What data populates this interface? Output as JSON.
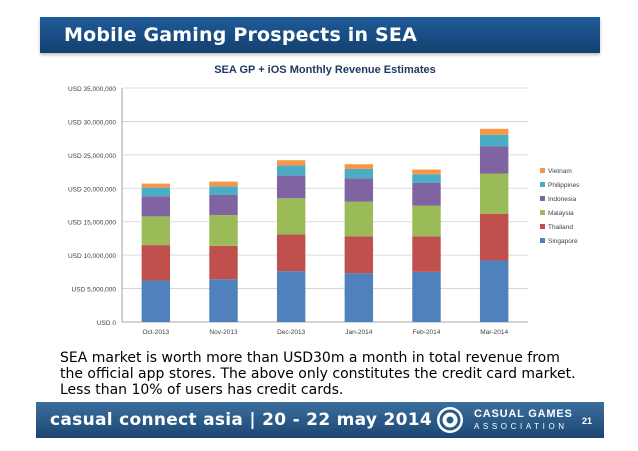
{
  "slide": {
    "title": "Mobile Gaming Prospects in SEA",
    "body": "SEA market is worth more than USD30m a month in total revenue from the official app stores. The above only constitutes the credit card market. Less than 10% of users has credit cards.",
    "page_number": "21"
  },
  "footer": {
    "event_text": "casual connect asia | 20 - 22 may 2014",
    "org_line1": "CASUAL GAMES",
    "org_line2": "ASSOCIATION",
    "logo_icon": "casual-games-association-logo-icon"
  },
  "colors": {
    "title_bar": "#1f5b9a",
    "footer_bar": "#2a5a88"
  },
  "chart_data": {
    "type": "bar",
    "stacked": true,
    "title": "SEA GP + iOS Monthly Revenue Estimates",
    "categories": [
      "Oct-2013",
      "Nov-2013",
      "Dec-2013",
      "Jan-2014",
      "Feb-2014",
      "Mar-2014"
    ],
    "ylim": [
      0,
      35000000
    ],
    "yticks": [
      0,
      5000000,
      10000000,
      15000000,
      20000000,
      25000000,
      30000000,
      35000000
    ],
    "ytick_labels": [
      "USD 0",
      "USD 5,000,000",
      "USD 10,000,000",
      "USD 15,000,000",
      "USD 20,000,000",
      "USD 25,000,000",
      "USD 30,000,000",
      "USD 35,000,000"
    ],
    "gridlines": true,
    "legend_position": "right",
    "series": [
      {
        "name": "Singapore",
        "color": "#4f81bd",
        "values": [
          6200000,
          6400000,
          7600000,
          7300000,
          7500000,
          9200000
        ]
      },
      {
        "name": "Thailand",
        "color": "#c0504d",
        "values": [
          5300000,
          5000000,
          5500000,
          5500000,
          5300000,
          7000000
        ]
      },
      {
        "name": "Malaysia",
        "color": "#9bbb59",
        "values": [
          4300000,
          4600000,
          5400000,
          5200000,
          4600000,
          6000000
        ]
      },
      {
        "name": "Indonesia",
        "color": "#8064a2",
        "values": [
          3000000,
          3000000,
          3400000,
          3500000,
          3400000,
          4100000
        ]
      },
      {
        "name": "Philippines",
        "color": "#4bacc6",
        "values": [
          1300000,
          1300000,
          1500000,
          1400000,
          1300000,
          1700000
        ]
      },
      {
        "name": "Vietnam",
        "color": "#f79646",
        "values": [
          600000,
          700000,
          800000,
          700000,
          700000,
          900000
        ]
      }
    ]
  }
}
